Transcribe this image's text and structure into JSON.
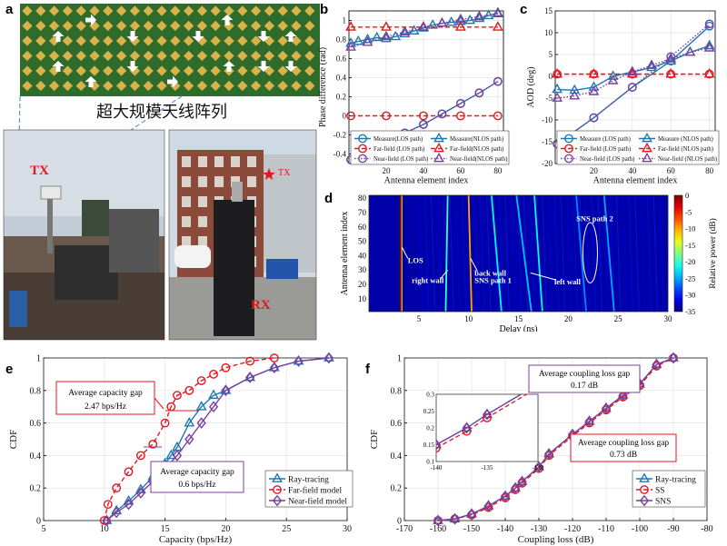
{
  "panels": {
    "a": {
      "letter": "a",
      "array_label": "超大规模天线阵列",
      "tx_label": "TX",
      "rx_label": "RX",
      "tx_star_label": "TX",
      "colors": {
        "board": "#2f6b2a",
        "element": "#d8b24a",
        "tx_text": "#e8141e"
      }
    },
    "b": {
      "letter": "b"
    },
    "c": {
      "letter": "c"
    },
    "d": {
      "letter": "d"
    },
    "e": {
      "letter": "e"
    },
    "f": {
      "letter": "f"
    }
  },
  "chart_data": [
    {
      "id": "b",
      "type": "line",
      "title": "",
      "xlabel": "Antenna element index",
      "ylabel": "Phase difference (rad)",
      "xlim": [
        0,
        83
      ],
      "ylim": [
        -0.5,
        1.1
      ],
      "xticks": [
        20,
        40,
        60,
        80
      ],
      "yticks": [
        -0.4,
        -0.2,
        0,
        0.2,
        0.4,
        0.6,
        0.8,
        1
      ],
      "grid": true,
      "legend_placement": "bottom",
      "series": [
        {
          "name": "Measure(LOS path)",
          "color": "#1f77b4",
          "marker": "circle",
          "dash": "solid",
          "x": [
            1,
            10,
            20,
            30,
            40,
            50,
            60,
            70,
            80
          ],
          "y": [
            -0.46,
            -0.37,
            -0.27,
            -0.18,
            -0.09,
            0.02,
            0.13,
            0.24,
            0.36
          ]
        },
        {
          "name": "Far-field (LOS path)",
          "color": "#e8141e",
          "marker": "circle",
          "dash": "dashed",
          "x": [
            1,
            20,
            40,
            60,
            80
          ],
          "y": [
            0,
            0,
            0,
            0,
            0
          ]
        },
        {
          "name": "Near-field (LOS path)",
          "color": "#7b3fa0",
          "marker": "circle",
          "dash": "dotted",
          "x": [
            1,
            10,
            20,
            30,
            40,
            50,
            60,
            70,
            80
          ],
          "y": [
            -0.46,
            -0.37,
            -0.27,
            -0.18,
            -0.09,
            0.02,
            0.13,
            0.24,
            0.36
          ]
        },
        {
          "name": "Measure(NLOS path)",
          "color": "#1f77b4",
          "marker": "triangle",
          "dash": "solid",
          "x": [
            1,
            5,
            10,
            15,
            20,
            25,
            30,
            35,
            40,
            45,
            50,
            55,
            60,
            65,
            70,
            75,
            80
          ],
          "y": [
            0.76,
            0.78,
            0.8,
            0.82,
            0.81,
            0.83,
            0.86,
            0.89,
            0.92,
            0.95,
            0.97,
            0.98,
            0.99,
            1.0,
            1.02,
            1.05,
            1.08
          ]
        },
        {
          "name": "Far-field(NLOS path)",
          "color": "#e8141e",
          "marker": "triangle",
          "dash": "dashed",
          "x": [
            1,
            20,
            40,
            60,
            80
          ],
          "y": [
            0.93,
            0.93,
            0.93,
            0.93,
            0.93
          ]
        },
        {
          "name": "Near-field(NLOS path)",
          "color": "#7b3fa0",
          "marker": "triangle",
          "dash": "dotted",
          "x": [
            1,
            10,
            20,
            30,
            40,
            50,
            60,
            70,
            80
          ],
          "y": [
            0.72,
            0.77,
            0.83,
            0.88,
            0.93,
            0.97,
            1.01,
            1.04,
            1.07
          ]
        }
      ]
    },
    {
      "id": "c",
      "type": "line",
      "title": "",
      "xlabel": "Antenna element index",
      "ylabel": "AOD (deg)",
      "xlim": [
        0,
        83
      ],
      "ylim": [
        -20,
        15
      ],
      "xticks": [
        20,
        40,
        60,
        80
      ],
      "yticks": [
        -20,
        -15,
        -10,
        -5,
        0,
        5,
        10,
        15
      ],
      "grid": true,
      "legend_placement": "bottom",
      "series": [
        {
          "name": "Measure (LOS path)",
          "color": "#1f77b4",
          "marker": "circle",
          "dash": "solid",
          "x": [
            1,
            20,
            40,
            60,
            80
          ],
          "y": [
            -15.5,
            -9.5,
            -2.5,
            3.5,
            11.5
          ]
        },
        {
          "name": "Far-field (LOS path)",
          "color": "#e8141e",
          "marker": "circle",
          "dash": "dashed",
          "x": [
            1,
            20,
            40,
            60,
            80
          ],
          "y": [
            0.5,
            0.5,
            0.5,
            0.5,
            0.5
          ]
        },
        {
          "name": "Near-field (LOS path)",
          "color": "#7b3fa0",
          "marker": "circle",
          "dash": "dotted",
          "x": [
            1,
            20,
            40,
            60,
            80
          ],
          "y": [
            -15.5,
            -9.5,
            -2.5,
            4.5,
            12
          ]
        },
        {
          "name": "Measure (NLOS path)",
          "color": "#1f77b4",
          "marker": "triangle",
          "dash": "solid",
          "x": [
            1,
            10,
            20,
            30,
            40,
            50,
            60,
            70,
            80
          ],
          "y": [
            -3,
            -3.2,
            -2.5,
            0,
            1,
            2,
            3.5,
            5.5,
            7
          ]
        },
        {
          "name": "Far-field (NLOS path)",
          "color": "#e8141e",
          "marker": "triangle",
          "dash": "dashed",
          "x": [
            1,
            20,
            40,
            60,
            80
          ],
          "y": [
            0.5,
            0.5,
            0.5,
            0.5,
            0.5
          ]
        },
        {
          "name": "Near-field (NLOS path)",
          "color": "#7b3fa0",
          "marker": "triangle",
          "dash": "dotted",
          "x": [
            1,
            10,
            20,
            30,
            40,
            50,
            60,
            70,
            80
          ],
          "y": [
            -5,
            -4.5,
            -3.5,
            -1,
            1,
            2.5,
            4,
            5.5,
            6.5
          ]
        }
      ]
    },
    {
      "id": "d",
      "type": "heatmap",
      "title": "",
      "xlabel": "Delay (ns)",
      "ylabel": "Antenna element index",
      "xlim": [
        0,
        30
      ],
      "ylim": [
        1,
        82
      ],
      "xticks": [
        5,
        10,
        15,
        20,
        25,
        30
      ],
      "yticks": [
        10,
        20,
        30,
        40,
        50,
        60,
        70,
        80
      ],
      "colorbar": {
        "label": "Relative power (dB)",
        "min": -35,
        "max": 0,
        "ticks": [
          0,
          -5,
          -10,
          -15,
          -20,
          -25,
          -30,
          -35
        ]
      },
      "paths": [
        {
          "x_top": 3.2,
          "x_bottom": 3.2,
          "power_db": 0
        },
        {
          "x_top": 7.9,
          "x_bottom": 7.7,
          "power_db": -20
        },
        {
          "x_top": 10.0,
          "x_bottom": 10.3,
          "power_db": -10
        },
        {
          "x_top": 12.3,
          "x_bottom": 13.3,
          "power_db": -22
        },
        {
          "x_top": 14.8,
          "x_bottom": 16.3,
          "power_db": -24
        },
        {
          "x_top": 16.6,
          "x_bottom": 17.4,
          "power_db": -22
        },
        {
          "x_top": 20.8,
          "x_bottom": 21.8,
          "power_db": -26
        },
        {
          "x_top": 23.6,
          "x_bottom": 24.6,
          "power_db": -25
        }
      ],
      "annotations": [
        {
          "text": "LOS",
          "x": 3.5,
          "y": 37
        },
        {
          "text": "right wall",
          "x": 4.5,
          "y": 22
        },
        {
          "text": "back wall",
          "x": 10.3,
          "y": 24
        },
        {
          "text": "SNS path 1",
          "x": 10.3,
          "y": 20
        },
        {
          "text": "left wall",
          "x": 18.3,
          "y": 22
        },
        {
          "text": "SNS path 2",
          "x": 21.3,
          "y": 63
        }
      ]
    },
    {
      "id": "e",
      "type": "line",
      "title": "",
      "xlabel": "Capacity (bps/Hz)",
      "ylabel": "CDF",
      "xlim": [
        5,
        30
      ],
      "ylim": [
        0,
        1
      ],
      "xticks": [
        5,
        10,
        15,
        20,
        25,
        30
      ],
      "yticks": [
        0,
        0.2,
        0.4,
        0.6,
        0.8,
        1
      ],
      "grid": true,
      "legend_placement": "bottom-right",
      "annotations": [
        {
          "text": "Average capacity gap",
          "line2": "2.47 bps/Hz"
        },
        {
          "text": "Average capacity gap",
          "line2": "0.6 bps/Hz"
        }
      ],
      "series": [
        {
          "name": "Ray-tracing",
          "color": "#1f77b4",
          "marker": "triangle",
          "dash": "solid",
          "x": [
            10.2,
            11,
            12,
            13,
            14,
            15,
            15.5,
            16,
            17,
            18,
            19,
            20,
            22,
            24,
            26,
            28.5
          ],
          "y": [
            0,
            0.06,
            0.12,
            0.19,
            0.27,
            0.35,
            0.4,
            0.45,
            0.6,
            0.7,
            0.77,
            0.8,
            0.88,
            0.94,
            0.98,
            1
          ]
        },
        {
          "name": "Far-field model",
          "color": "#e8141e",
          "marker": "circle",
          "dash": "dashed",
          "x": [
            10,
            10.3,
            11,
            12,
            13,
            14,
            15,
            15.5,
            16,
            17,
            18,
            19,
            20,
            22,
            24
          ],
          "y": [
            0,
            0.1,
            0.2,
            0.3,
            0.4,
            0.47,
            0.6,
            0.7,
            0.77,
            0.8,
            0.86,
            0.9,
            0.94,
            0.98,
            1
          ]
        },
        {
          "name": "Near-field model",
          "color": "#7b3fa0",
          "marker": "diamond",
          "dash": "solid",
          "x": [
            10.2,
            11,
            12,
            13,
            14,
            15,
            16,
            17,
            18,
            19,
            20,
            22,
            24,
            26,
            28.5
          ],
          "y": [
            0,
            0.05,
            0.1,
            0.17,
            0.24,
            0.32,
            0.4,
            0.5,
            0.6,
            0.7,
            0.8,
            0.88,
            0.94,
            0.98,
            1
          ]
        }
      ]
    },
    {
      "id": "f",
      "type": "line",
      "title": "",
      "xlabel": "Coupling loss (dB)",
      "ylabel": "CDF",
      "xlim": [
        -170,
        -80
      ],
      "ylim": [
        0,
        1
      ],
      "xticks": [
        -170,
        -160,
        -150,
        -140,
        -130,
        -120,
        -110,
        -100,
        -90,
        -80
      ],
      "yticks": [
        0,
        0.2,
        0.4,
        0.6,
        0.8,
        1
      ],
      "grid": true,
      "legend_placement": "bottom-right",
      "annotations": [
        {
          "text": "Average coupling loss gap",
          "line2": "0.17 dB"
        },
        {
          "text": "Average coupling loss gap",
          "line2": "0.73 dB"
        }
      ],
      "inset": {
        "xlim": [
          -140,
          -130
        ],
        "ylim": [
          0.1,
          0.3
        ],
        "xticks": [
          -140,
          -135,
          -130
        ],
        "yticks": [
          0.1,
          0.15,
          0.2,
          0.25,
          0.3
        ]
      },
      "series": [
        {
          "name": "Ray-tracing",
          "color": "#1f77b4",
          "marker": "triangle",
          "dash": "solid",
          "x": [
            -160,
            -155,
            -150,
            -145,
            -140,
            -137,
            -135,
            -130,
            -127,
            -120,
            -115,
            -110,
            -105,
            -100,
            -95,
            -90
          ],
          "y": [
            0,
            0.01,
            0.04,
            0.09,
            0.15,
            0.2,
            0.24,
            0.33,
            0.41,
            0.53,
            0.61,
            0.69,
            0.77,
            0.84,
            0.96,
            1
          ]
        },
        {
          "name": "SS",
          "color": "#e8141e",
          "marker": "circle",
          "dash": "dashed",
          "x": [
            -160,
            -155,
            -150,
            -145,
            -140,
            -137,
            -135,
            -130,
            -127,
            -120,
            -115,
            -110,
            -105,
            -100,
            -95,
            -90
          ],
          "y": [
            0,
            0.01,
            0.035,
            0.08,
            0.14,
            0.19,
            0.23,
            0.32,
            0.4,
            0.52,
            0.6,
            0.68,
            0.76,
            0.83,
            0.95,
            1
          ]
        },
        {
          "name": "SNS",
          "color": "#7b3fa0",
          "marker": "diamond",
          "dash": "solid",
          "x": [
            -160,
            -155,
            -150,
            -145,
            -140,
            -137,
            -135,
            -130,
            -127,
            -120,
            -115,
            -110,
            -105,
            -100,
            -95,
            -90
          ],
          "y": [
            0,
            0.01,
            0.04,
            0.09,
            0.15,
            0.2,
            0.24,
            0.33,
            0.41,
            0.53,
            0.61,
            0.69,
            0.77,
            0.84,
            0.96,
            1
          ]
        }
      ]
    }
  ]
}
